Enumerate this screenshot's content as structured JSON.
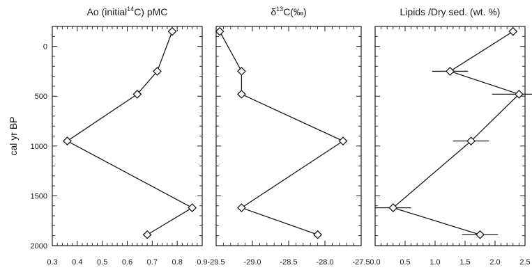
{
  "shared": {
    "ylabel": "cal yr BP",
    "ylim": [
      -200,
      2000
    ],
    "yticks": [
      0,
      500,
      1000,
      1500,
      2000
    ],
    "y_reversed": true
  },
  "chart_data": [
    {
      "type": "line",
      "title_pre": "Ao (initial",
      "title_sup": "14",
      "title_post": "C) pMC",
      "xlim": [
        0.3,
        0.9
      ],
      "xticks": [
        0.3,
        0.4,
        0.5,
        0.6,
        0.7,
        0.8,
        0.9
      ],
      "xtick_labels": [
        "0.3",
        "0.4",
        "0.5",
        "0.6",
        "0.7",
        "0.8",
        "0.9"
      ],
      "series": [
        {
          "marker": "diamond",
          "points": [
            {
              "x": 0.78,
              "y": -150
            },
            {
              "x": 0.72,
              "y": 250
            },
            {
              "x": 0.64,
              "y": 480
            },
            {
              "x": 0.36,
              "y": 950
            },
            {
              "x": 0.86,
              "y": 1620
            },
            {
              "x": 0.68,
              "y": 1890
            }
          ]
        }
      ]
    },
    {
      "type": "line",
      "title_pre": "δ",
      "title_sup": "13",
      "title_post": "C(‰)",
      "xlim": [
        -29.5,
        -27.5
      ],
      "xticks": [
        -29.5,
        -29.0,
        -28.5,
        -28.0,
        -27.5
      ],
      "xtick_labels": [
        "-29.5",
        "-29.0",
        "-28.5",
        "-28.0",
        "-27.5"
      ],
      "series": [
        {
          "marker": "diamond",
          "points": [
            {
              "x": -29.45,
              "y": -150
            },
            {
              "x": -29.15,
              "y": 250
            },
            {
              "x": -29.15,
              "y": 480
            },
            {
              "x": -27.75,
              "y": 950
            },
            {
              "x": -29.15,
              "y": 1620
            },
            {
              "x": -28.1,
              "y": 1890
            }
          ]
        }
      ]
    },
    {
      "type": "line",
      "title_pre": "Lipids /Dry sed. (wt. %)",
      "title_sup": "",
      "title_post": "",
      "xlim": [
        0.0,
        2.5
      ],
      "xticks": [
        0.0,
        0.5,
        1.0,
        1.5,
        2.0,
        2.5
      ],
      "xtick_labels": [
        "0.0",
        "0.5",
        "1.0",
        "1.5",
        "2.0",
        "2.5"
      ],
      "series": [
        {
          "marker": "diamond",
          "error_bars": "horizontal",
          "points": [
            {
              "x": 2.3,
              "y": -150,
              "xerr": 0.0
            },
            {
              "x": 1.25,
              "y": 250,
              "xerr": 0.3
            },
            {
              "x": 2.4,
              "y": 480,
              "xerr": 0.45
            },
            {
              "x": 1.6,
              "y": 950,
              "xerr": 0.3
            },
            {
              "x": 0.3,
              "y": 1620,
              "xerr": 0.3
            },
            {
              "x": 1.75,
              "y": 1890,
              "xerr": 0.3
            }
          ]
        }
      ]
    }
  ]
}
